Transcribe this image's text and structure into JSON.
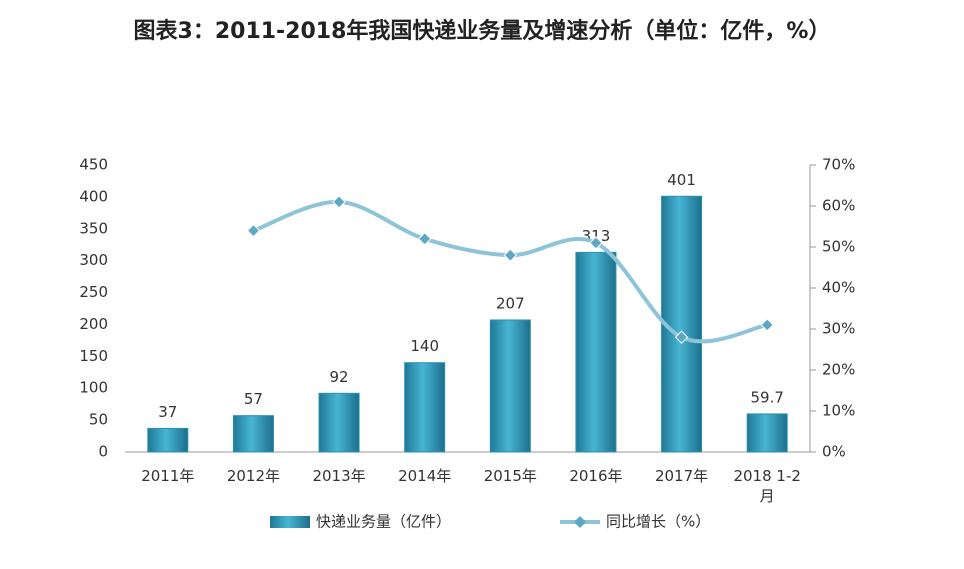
{
  "chart_data": {
    "type": "bar-line",
    "title": "图表3：2011-2018年我国快递业务量及增速分析（单位：亿件，%）",
    "categories": [
      "2011年",
      "2012年",
      "2013年",
      "2014年",
      "2015年",
      "2016年",
      "2017年",
      "2018 1-2月"
    ],
    "series": [
      {
        "name": "快递业务量（亿件）",
        "type": "bar",
        "color": "#2a90b2",
        "values": [
          37,
          57,
          92,
          140,
          207,
          313,
          401,
          59.7
        ]
      },
      {
        "name": "同比增长（%）",
        "type": "line",
        "axis": "y2",
        "color": "#8ec4d8",
        "values": [
          null,
          54,
          61,
          52,
          48,
          51,
          28,
          31
        ]
      }
    ],
    "ylim": [
      0,
      450
    ],
    "yticks": [
      0,
      50,
      100,
      150,
      200,
      250,
      300,
      350,
      400,
      450
    ],
    "y2lim": [
      0,
      70
    ],
    "y2ticks": [
      {
        "value": 0,
        "label": "0%"
      },
      {
        "value": 10,
        "label": "10%"
      },
      {
        "value": 20,
        "label": "20%"
      },
      {
        "value": 30,
        "label": "30%"
      },
      {
        "value": 40,
        "label": "40%"
      },
      {
        "value": 50,
        "label": "50%"
      },
      {
        "value": 60,
        "label": "60%"
      },
      {
        "value": 70,
        "label": "70%"
      }
    ],
    "grid": false
  }
}
